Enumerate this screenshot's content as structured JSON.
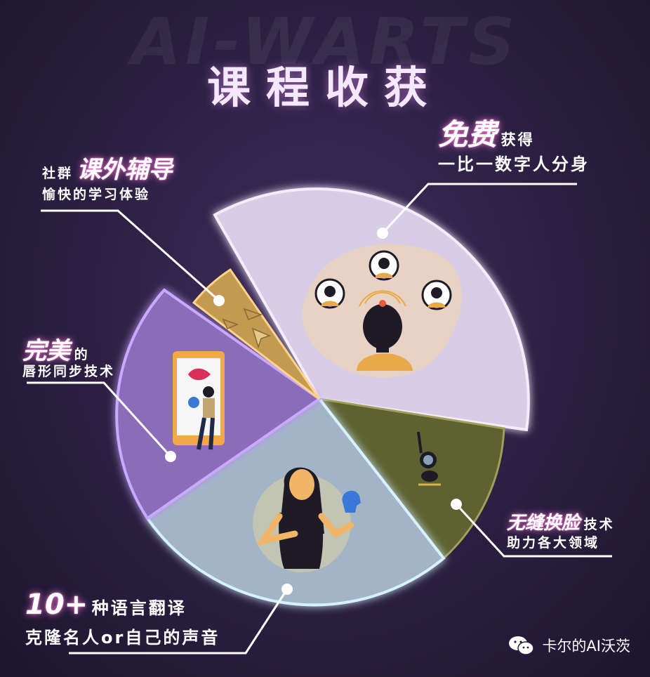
{
  "background_word": "AI-WARTS",
  "title": "课程收获",
  "labels": {
    "free": {
      "highlight": "免费",
      "rest": "获得",
      "line2": "一比一数字人分身"
    },
    "community": {
      "prefix": "社群",
      "highlight": "课外辅导",
      "line2": "愉快的学习体验"
    },
    "lipsync": {
      "highlight": "完美",
      "rest": "的",
      "line2": "唇形同步技术"
    },
    "faceswap": {
      "highlight": "无缝换脸",
      "rest": "技术",
      "line2": "助力各大领域"
    },
    "translate": {
      "highlight": "10+",
      "rest": "种语言翻译",
      "line2": "克隆名人or自己的声音"
    }
  },
  "watermark": "卡尔的AI沃茨",
  "colors": {
    "slice_free": "#d8cde6",
    "slice_community": "#c49a52",
    "slice_lipsync": "#8a6cb8",
    "slice_translate": "#a2b4c6",
    "slice_faceswap": "#5e6231",
    "glow": "#ff8ad8"
  },
  "icons": [
    "avatar-icon",
    "paper-plane-icon",
    "cursor-icon",
    "phone-icon",
    "lips-icon",
    "speaking-head-icon",
    "camera-bird-icon",
    "wechat-icon"
  ]
}
